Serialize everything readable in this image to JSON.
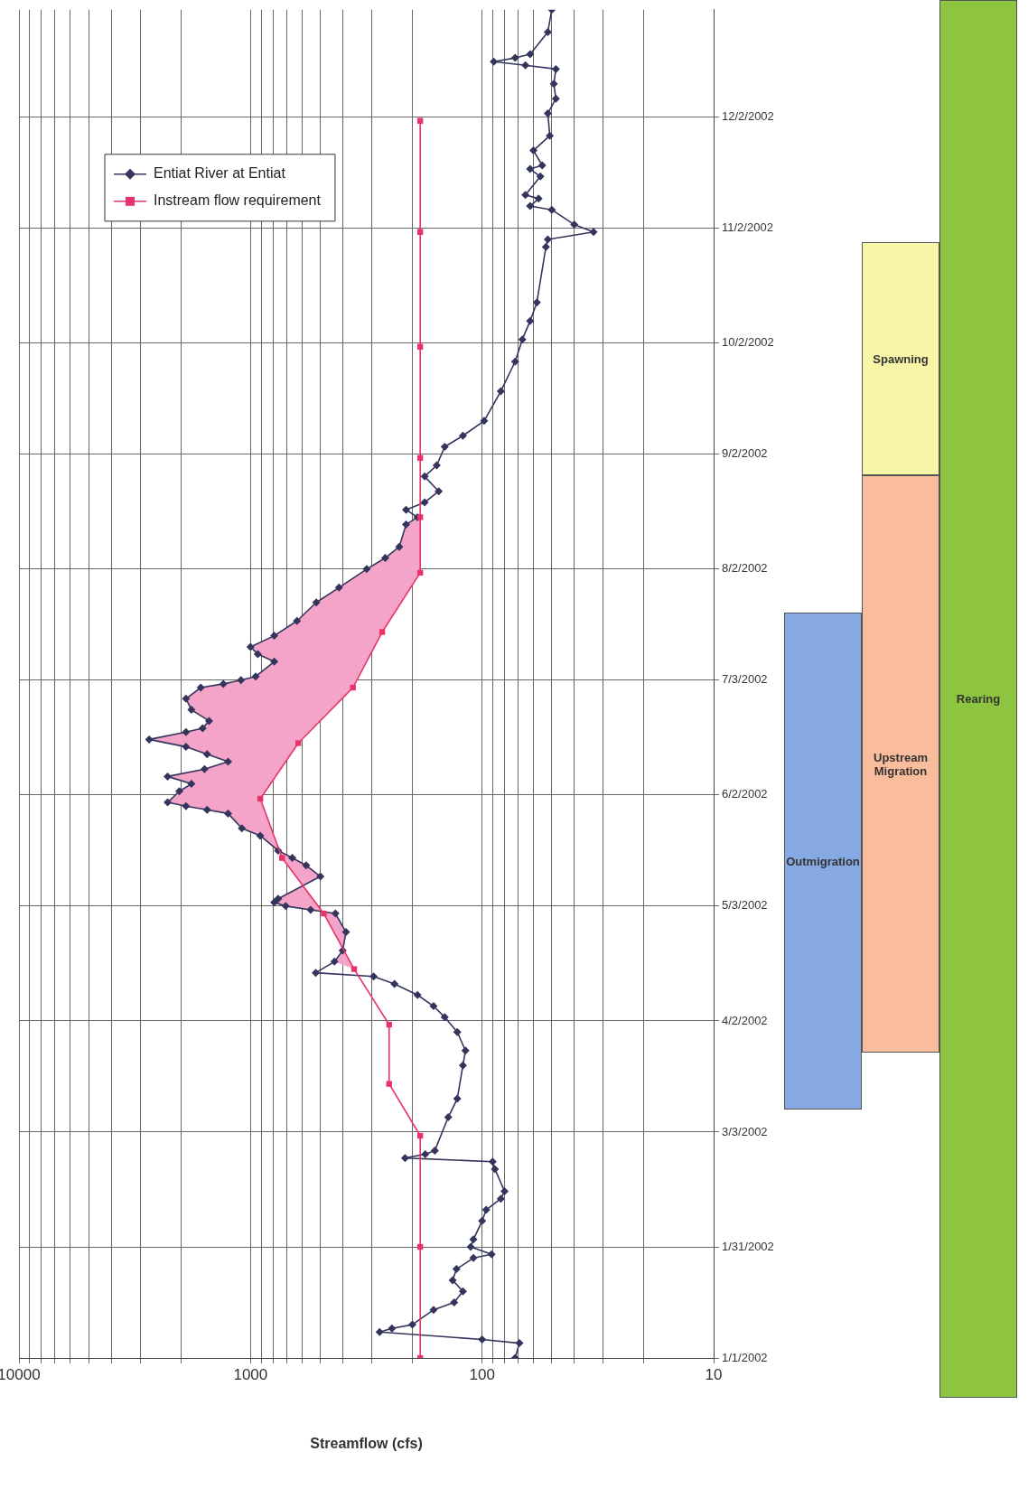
{
  "chart_data": [
    {
      "type": "line",
      "orientation": "horizontal",
      "xlabel": "Streamflow (cfs)",
      "log": "x",
      "grid": true,
      "legend": "top left",
      "ylim": [
        "2002-01-01",
        "2002-12-31"
      ],
      "yticks": [
        {
          "value": "2002-01-01",
          "label": "1/1/2002"
        },
        {
          "value": "2002-01-31",
          "label": "1/31/2002"
        },
        {
          "value": "2002-03-03",
          "label": "3/3/2002"
        },
        {
          "value": "2002-04-02",
          "label": "4/2/2002"
        },
        {
          "value": "2002-05-03",
          "label": "5/3/2002"
        },
        {
          "value": "2002-06-02",
          "label": "6/2/2002"
        },
        {
          "value": "2002-07-03",
          "label": "7/3/2002"
        },
        {
          "value": "2002-08-02",
          "label": "8/2/2002"
        },
        {
          "value": "2002-09-02",
          "label": "9/2/2002"
        },
        {
          "value": "2002-10-02",
          "label": "10/2/2002"
        },
        {
          "value": "2002-11-02",
          "label": "11/2/2002"
        },
        {
          "value": "2002-12-02",
          "label": "12/2/2002"
        }
      ],
      "xlim": [
        10000,
        10
      ],
      "xticks": [
        10,
        {
          "value": 20,
          "label": null
        },
        {
          "value": 30,
          "label": null
        },
        {
          "value": 40,
          "label": null
        },
        {
          "value": 50,
          "label": null
        },
        {
          "value": 60,
          "label": null
        },
        {
          "value": 70,
          "label": null
        },
        {
          "value": 80,
          "label": null
        },
        {
          "value": 90,
          "label": null
        },
        100,
        {
          "value": 200,
          "label": null
        },
        {
          "value": 300,
          "label": null
        },
        {
          "value": 400,
          "label": null
        },
        {
          "value": 500,
          "label": null
        },
        {
          "value": 600,
          "label": null
        },
        {
          "value": 700,
          "label": null
        },
        {
          "value": 800,
          "label": null
        },
        {
          "value": 900,
          "label": null
        },
        1000,
        {
          "value": 2000,
          "label": null
        },
        {
          "value": 3000,
          "label": null
        },
        {
          "value": 4000,
          "label": null
        },
        {
          "value": 5000,
          "label": null
        },
        {
          "value": 6000,
          "label": null
        },
        {
          "value": 7000,
          "label": null
        },
        {
          "value": 8000,
          "label": null
        },
        {
          "value": 9000,
          "label": null
        },
        10000
      ],
      "series": [
        {
          "name": "Entiat River at Entiat",
          "color": "#34355c",
          "marker": "diamond",
          "line_style": "solid",
          "x": [
            "2002-01-01",
            "2002-01-05",
            "2002-01-06",
            "2002-01-08",
            "2002-01-09",
            "2002-01-10",
            "2002-01-14",
            "2002-01-16",
            "2002-01-19",
            "2002-01-22",
            "2002-01-25",
            "2002-01-28",
            "2002-01-29",
            "2002-01-31",
            "2002-02-02",
            "2002-02-07",
            "2002-02-10",
            "2002-02-13",
            "2002-02-15",
            "2002-02-21",
            "2002-02-23",
            "2002-02-24",
            "2002-02-25",
            "2002-02-26",
            "2002-03-07",
            "2002-03-12",
            "2002-03-21",
            "2002-03-25",
            "2002-03-30",
            "2002-04-03",
            "2002-04-06",
            "2002-04-09",
            "2002-04-12",
            "2002-04-14",
            "2002-04-15",
            "2002-04-18",
            "2002-04-21",
            "2002-04-26",
            "2002-05-01",
            "2002-05-02",
            "2002-05-03",
            "2002-05-04",
            "2002-05-05",
            "2002-05-11",
            "2002-05-14",
            "2002-05-16",
            "2002-05-18",
            "2002-05-22",
            "2002-05-24",
            "2002-05-28",
            "2002-05-29",
            "2002-05-30",
            "2002-05-31",
            "2002-06-03",
            "2002-06-05",
            "2002-06-07",
            "2002-06-09",
            "2002-06-11",
            "2002-06-13",
            "2002-06-15",
            "2002-06-17",
            "2002-06-19",
            "2002-06-20",
            "2002-06-22",
            "2002-06-25",
            "2002-06-28",
            "2002-07-01",
            "2002-07-02",
            "2002-07-03",
            "2002-07-04",
            "2002-07-08",
            "2002-07-10",
            "2002-07-12",
            "2002-07-15",
            "2002-07-19",
            "2002-07-24",
            "2002-07-28",
            "2002-08-02",
            "2002-08-05",
            "2002-08-08",
            "2002-08-14",
            "2002-08-16",
            "2002-08-18",
            "2002-08-20",
            "2002-08-23",
            "2002-08-27",
            "2002-08-30",
            "2002-09-04",
            "2002-09-07",
            "2002-09-11",
            "2002-09-19",
            "2002-09-27",
            "2002-10-03",
            "2002-10-08",
            "2002-10-13",
            "2002-10-28",
            "2002-10-30",
            "2002-11-01",
            "2002-11-03",
            "2002-11-07",
            "2002-11-08",
            "2002-11-10",
            "2002-11-11",
            "2002-11-16",
            "2002-11-18",
            "2002-11-19",
            "2002-11-23",
            "2002-11-27",
            "2002-12-03",
            "2002-12-07",
            "2002-12-11",
            "2002-12-15",
            "2002-12-16",
            "2002-12-17",
            "2002-12-18",
            "2002-12-19",
            "2002-12-25",
            "2002-12-31"
          ],
          "values": [
            72,
            69,
            100,
            277,
            245,
            200,
            162,
            132,
            121,
            134,
            129,
            109,
            91,
            112,
            109,
            100,
            96,
            83,
            80,
            88,
            90,
            215,
            176,
            160,
            140,
            128,
            121,
            118,
            128,
            145,
            162,
            190,
            239,
            294,
            523,
            434,
            400,
            387,
            430,
            550,
            705,
            790,
            760,
            499,
            575,
            660,
            760,
            908,
            1090,
            1250,
            1540,
            1900,
            2280,
            2030,
            1800,
            2280,
            1580,
            1250,
            1540,
            1900,
            2740,
            1900,
            1610,
            1510,
            1800,
            1900,
            1640,
            1310,
            1100,
            950,
            790,
            930,
            1000,
            790,
            630,
            520,
            415,
            315,
            262,
            228,
            213,
            190,
            213,
            177,
            154,
            177,
            157,
            145,
            121,
            98,
            83,
            72,
            67,
            62,
            58,
            53,
            52,
            33,
            40,
            50,
            62,
            57,
            65,
            56,
            62,
            55,
            60,
            51,
            52,
            48,
            49,
            48,
            65,
            89,
            72,
            62,
            52,
            50
          ]
        },
        {
          "type": "area",
          "color": "#f4a3c9",
          "x": [
            "2002-04-16",
            "2002-04-18",
            "2002-04-21",
            "2002-04-26",
            "2002-05-01",
            "2002-05-02",
            "2002-05-03",
            "2002-05-04",
            "2002-05-05",
            "2002-05-11",
            "2002-05-14",
            "2002-05-16",
            "2002-05-18",
            "2002-05-22",
            "2002-05-24",
            "2002-05-28",
            "2002-05-29",
            "2002-05-30",
            "2002-05-31",
            "2002-06-03",
            "2002-06-05",
            "2002-06-07",
            "2002-06-09",
            "2002-06-11",
            "2002-06-13",
            "2002-06-15",
            "2002-06-17",
            "2002-06-19",
            "2002-06-20",
            "2002-06-22",
            "2002-06-25",
            "2002-06-28",
            "2002-07-01",
            "2002-07-02",
            "2002-07-03",
            "2002-07-04",
            "2002-07-08",
            "2002-07-10",
            "2002-07-12",
            "2002-07-15",
            "2002-07-19",
            "2002-07-24",
            "2002-07-28",
            "2002-08-02",
            "2002-08-05",
            "2002-08-08",
            "2002-08-14",
            "2002-08-16"
          ],
          "values": [
            357,
            434,
            400,
            387,
            430,
            550,
            705,
            790,
            760,
            499,
            575,
            660,
            760,
            908,
            1090,
            1250,
            1540,
            1900,
            2280,
            2030,
            1800,
            2280,
            1580,
            1250,
            1540,
            1900,
            2740,
            1900,
            1610,
            1510,
            1800,
            1900,
            1640,
            1310,
            1100,
            950,
            790,
            930,
            1000,
            790,
            630,
            520,
            415,
            315,
            262,
            228,
            213,
            185
          ]
        },
        {
          "name": "Instream flow requirement",
          "color": "#e8336a",
          "marker": "square",
          "line_style": "solid",
          "x": [
            "2002-01-01",
            "2002-01-31",
            "2002-03-02",
            "2002-03-16",
            "2002-04-01",
            "2002-04-16",
            "2002-05-01",
            "2002-05-16",
            "2002-06-01",
            "2002-06-16",
            "2002-07-01",
            "2002-07-16",
            "2002-08-01",
            "2002-08-16",
            "2002-09-01",
            "2002-10-01",
            "2002-11-01",
            "2002-12-01"
          ],
          "values": [
            185,
            185,
            185,
            252,
            252,
            357,
            483,
            731,
            907,
            622,
            361,
            270,
            185,
            185,
            185,
            185,
            185,
            185
          ]
        }
      ]
    },
    {
      "type": "other",
      "categories": [
        "Outmigration",
        "Upstream Migration",
        "Spawning",
        "Rearing"
      ],
      "colors": [
        "#86a9e3",
        "#f9bc9c",
        "#f8f5a6",
        "#8ec540"
      ]
    }
  ]
}
